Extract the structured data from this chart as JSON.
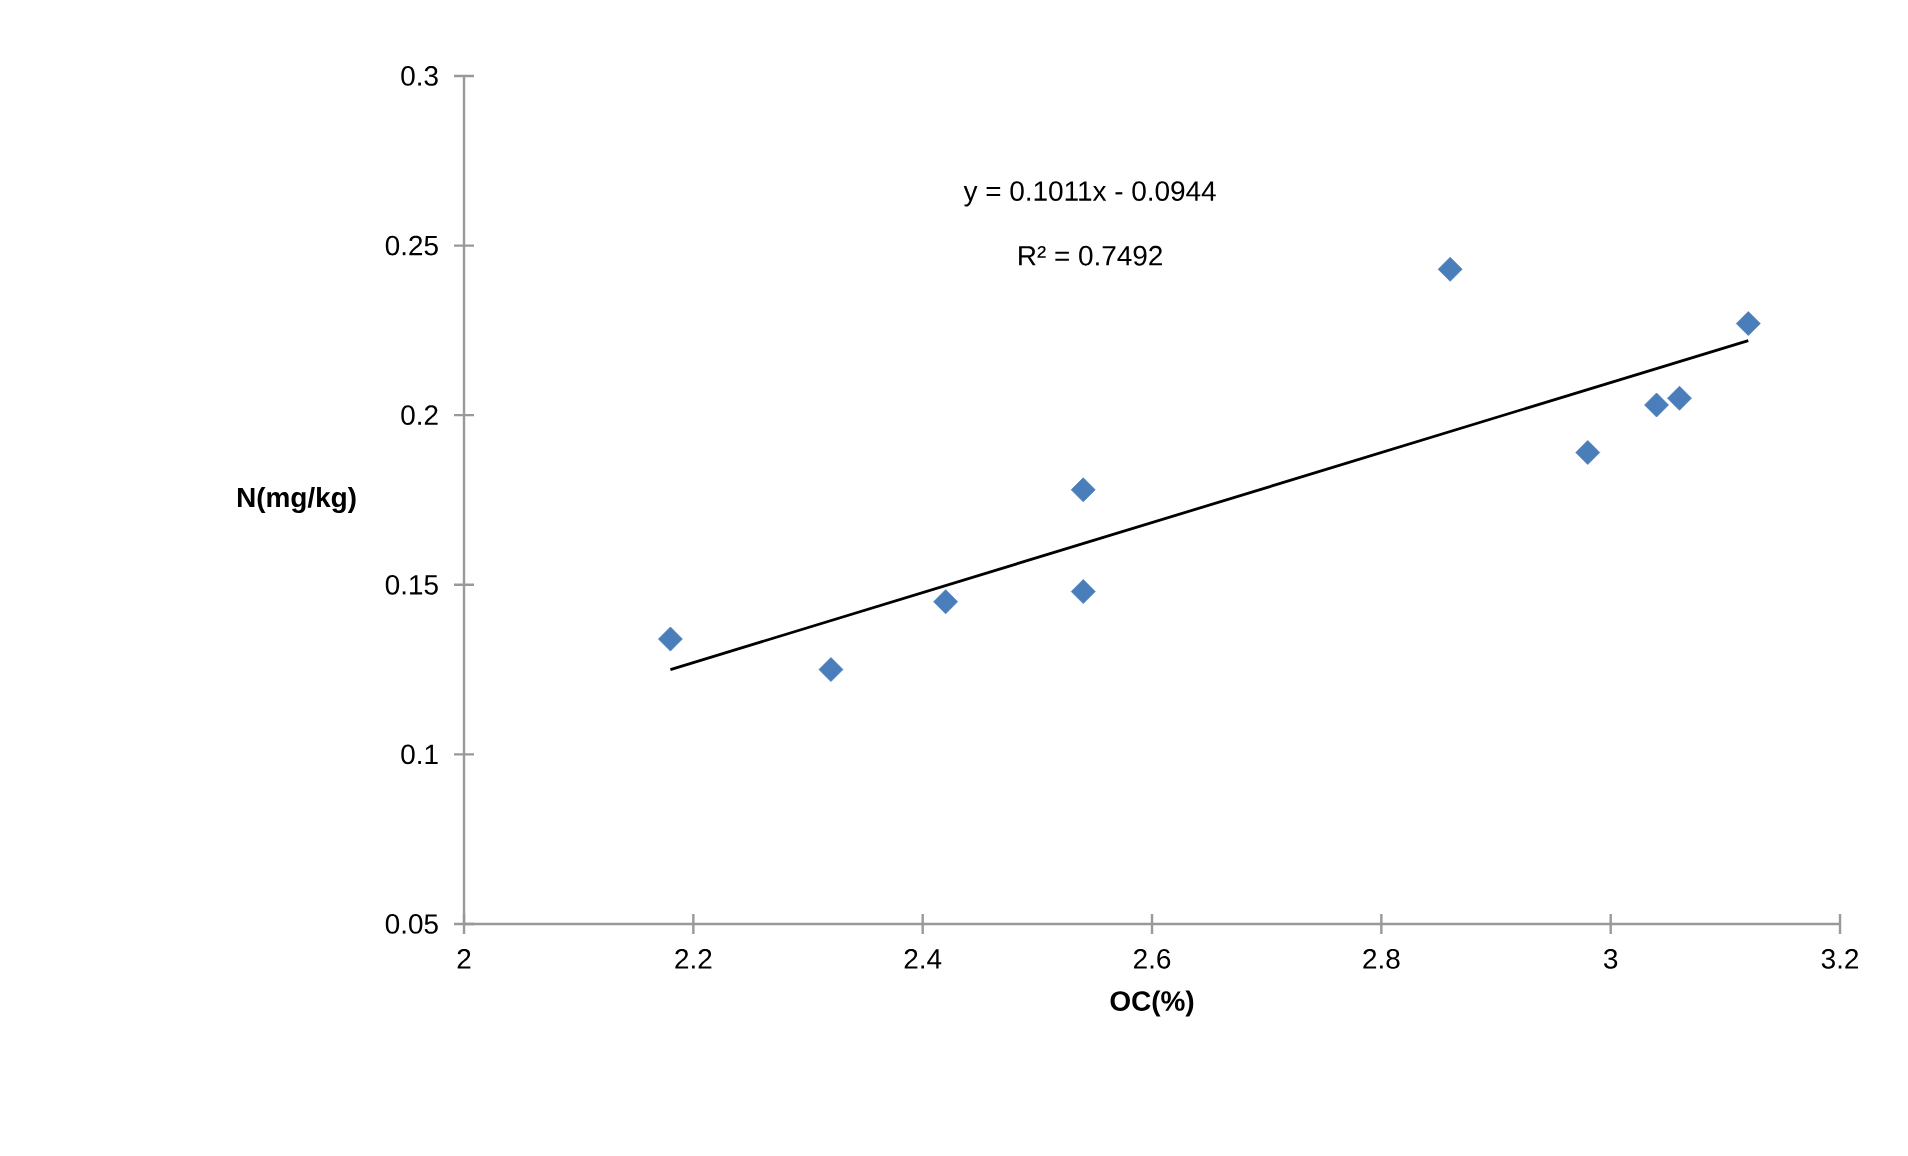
{
  "chart_data": {
    "type": "scatter",
    "xlabel": "OC(%)",
    "ylabel": "N(mg/kg)",
    "annotations": [
      "y = 0.1011x - 0.0944",
      "R² = 0.7492"
    ],
    "xlim": [
      2,
      3.2
    ],
    "xticks": [
      2,
      2.2,
      2.4,
      2.6,
      2.8,
      3,
      3.2
    ],
    "ylim": [
      0.05,
      0.3
    ],
    "yticks": [
      0.05,
      0.1,
      0.15,
      0.2,
      0.25,
      0.3
    ],
    "grid": false,
    "series": [
      {
        "marker": "diamond",
        "color": "#4a7ebb",
        "x": [
          2.18,
          2.32,
          2.42,
          2.54,
          2.54,
          2.86,
          2.98,
          3.04,
          3.06,
          3.12
        ],
        "values": [
          0.134,
          0.125,
          0.145,
          0.178,
          0.148,
          0.243,
          0.189,
          0.203,
          0.205,
          0.227
        ]
      },
      {
        "type": "line",
        "marker": "none",
        "line_style": "solid",
        "color": "#000000",
        "x": [
          2.18,
          3.12
        ],
        "values": [
          0.125,
          0.222
        ]
      }
    ]
  }
}
